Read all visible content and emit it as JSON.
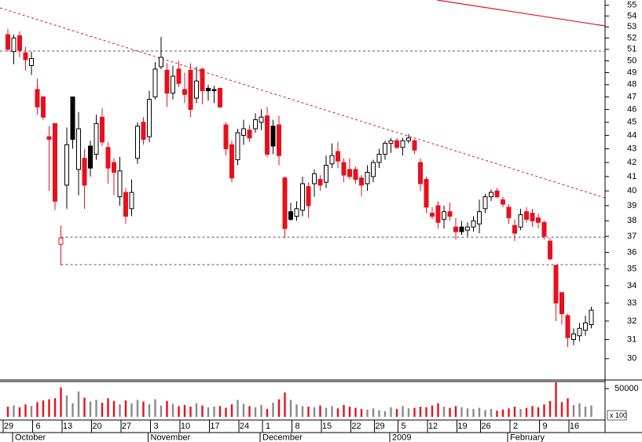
{
  "chart_data": {
    "type": "candlestick",
    "categories": [
      "29",
      null,
      null,
      null,
      null,
      "6",
      null,
      null,
      null,
      null,
      "13",
      null,
      null,
      null,
      null,
      "20",
      null,
      null,
      null,
      null,
      "27",
      null,
      null,
      null,
      null,
      "3",
      null,
      null,
      null,
      null,
      "10",
      null,
      null,
      null,
      null,
      "17",
      null,
      null,
      null,
      null,
      "24",
      null,
      null,
      null,
      "1",
      null,
      null,
      null,
      null,
      "8",
      null,
      null,
      null,
      null,
      "15",
      null,
      null,
      null,
      null,
      "22",
      null,
      null,
      null,
      "29",
      null,
      null,
      null,
      "5",
      null,
      null,
      null,
      null,
      "12",
      null,
      null,
      null,
      null,
      "19",
      null,
      null,
      null,
      "26",
      null,
      null,
      null,
      null,
      "2",
      null,
      null,
      null,
      null,
      "9",
      null,
      null,
      null,
      null,
      "16",
      null,
      null,
      null
    ],
    "months": [
      null,
      null,
      "October",
      null,
      null,
      null,
      null,
      null,
      null,
      null,
      null,
      null,
      null,
      null,
      null,
      null,
      null,
      null,
      null,
      null,
      null,
      null,
      null,
      null,
      null,
      "November",
      null,
      null,
      null,
      null,
      null,
      null,
      null,
      null,
      null,
      null,
      null,
      null,
      null,
      null,
      null,
      null,
      null,
      null,
      "December",
      null,
      null,
      null,
      null,
      null,
      null,
      null,
      null,
      null,
      null,
      null,
      null,
      null,
      null,
      null,
      null,
      null,
      null,
      null,
      null,
      null,
      "2009",
      null,
      null,
      null,
      null,
      null,
      null,
      null,
      null,
      null,
      null,
      null,
      null,
      null,
      null,
      null,
      null,
      null,
      null,
      null,
      "February",
      null,
      null,
      null,
      null,
      null,
      null,
      null,
      null,
      null,
      null,
      null,
      null,
      null
    ],
    "open": [
      52.3,
      50.8,
      52.2,
      50.7,
      49.6,
      47.6,
      47.0,
      43.9,
      44.9,
      36.5,
      40.4,
      47.0,
      41.5,
      42.3,
      43.2,
      42.6,
      45.4,
      43.1,
      42.0,
      39.6,
      39.9,
      38.8,
      42.3,
      45.0,
      43.9,
      47.0,
      49.5,
      49.2,
      47.3,
      49.3,
      47.6,
      49.2,
      46.9,
      49.3,
      47.7,
      47.6,
      47.7,
      44.8,
      43.3,
      42.2,
      44.0,
      44.4,
      44.5,
      45.0,
      45.5,
      44.7,
      44.8,
      40.9,
      38.6,
      38.3,
      38.7,
      40.3,
      40.5,
      40.8,
      40.6,
      41.9,
      42.8,
      42.0,
      41.5,
      41.5,
      40.9,
      40.5,
      41.0,
      42.0,
      42.6,
      43.4,
      43.6,
      43.1,
      43.6,
      43.6,
      42.0,
      40.8,
      38.5,
      39.0,
      38.1,
      38.6,
      37.6,
      37.6,
      37.4,
      37.6,
      37.8,
      38.8,
      39.6,
      40.0,
      39.4,
      38.9,
      37.7,
      37.6,
      38.6,
      38.5,
      38.2,
      37.9,
      36.7,
      35.2,
      33.6,
      32.3,
      31.0,
      31.2,
      31.5,
      31.8
    ],
    "high": [
      52.8,
      52.3,
      52.6,
      51.2,
      50.8,
      48.5,
      47.1,
      44.7,
      44.9,
      37.7,
      44.6,
      47.0,
      45.8,
      43.0,
      43.6,
      45.6,
      46.1,
      43.5,
      42.3,
      42.4,
      40.2,
      40.8,
      45.0,
      45.4,
      47.5,
      49.9,
      52.1,
      49.8,
      49.6,
      50.0,
      49.0,
      49.8,
      49.5,
      49.4,
      48.0,
      47.9,
      47.7,
      45.0,
      43.6,
      44.5,
      45.2,
      44.8,
      45.7,
      46.0,
      46.2,
      45.2,
      45.5,
      41.0,
      39.2,
      39.3,
      41.0,
      40.6,
      41.5,
      41.1,
      42.5,
      43.4,
      43.5,
      42.3,
      42.3,
      41.7,
      41.1,
      41.8,
      42.2,
      43.0,
      43.6,
      43.8,
      43.8,
      43.8,
      44.1,
      43.7,
      42.3,
      41.0,
      38.9,
      39.3,
      39.0,
      39.2,
      38.2,
      38.0,
      37.9,
      38.3,
      39.4,
      39.8,
      40.1,
      40.2,
      39.6,
      39.1,
      38.1,
      38.8,
      38.9,
      38.8,
      38.5,
      38.0,
      36.9,
      35.2,
      33.6,
      32.4,
      31.6,
      31.9,
      32.3,
      32.8
    ],
    "low": [
      50.8,
      49.7,
      50.3,
      49.2,
      48.8,
      45.6,
      45.2,
      40.0,
      38.7,
      35.2,
      38.8,
      43.0,
      39.7,
      38.8,
      41.0,
      42.2,
      43.2,
      40.5,
      39.7,
      39.0,
      37.8,
      38.3,
      41.9,
      43.3,
      43.5,
      46.8,
      49.3,
      46.2,
      46.8,
      47.8,
      46.5,
      45.4,
      46.5,
      46.4,
      46.7,
      46.5,
      46.1,
      42.5,
      40.6,
      41.8,
      43.3,
      43.5,
      44.2,
      44.4,
      42.4,
      42.6,
      41.8,
      36.9,
      38.0,
      38.0,
      38.3,
      38.2,
      39.6,
      40.0,
      40.2,
      41.6,
      41.6,
      40.6,
      40.8,
      40.5,
      39.6,
      40.0,
      40.6,
      41.6,
      42.2,
      42.7,
      43.0,
      42.5,
      43.4,
      42.6,
      40.0,
      38.5,
      38.1,
      37.5,
      37.5,
      38.0,
      36.8,
      37.1,
      37.0,
      37.3,
      37.2,
      38.5,
      39.3,
      39.5,
      38.9,
      37.8,
      36.7,
      37.4,
      37.9,
      37.6,
      37.5,
      36.8,
      35.5,
      32.0,
      31.8,
      30.6,
      30.7,
      30.9,
      31.2,
      31.6
    ],
    "close": [
      51.0,
      52.0,
      50.9,
      50.1,
      50.2,
      46.2,
      45.4,
      43.7,
      39.3,
      36.9,
      43.3,
      43.7,
      44.5,
      40.4,
      41.6,
      44.9,
      43.5,
      41.6,
      41.3,
      41.4,
      38.3,
      39.9,
      44.7,
      43.7,
      46.8,
      49.3,
      50.3,
      47.3,
      48.7,
      48.1,
      47.2,
      46.0,
      48.3,
      47.5,
      47.5,
      47.5,
      46.2,
      43.0,
      40.9,
      44.2,
      44.5,
      43.8,
      45.2,
      45.4,
      42.6,
      43.2,
      42.5,
      37.5,
      38.1,
      38.8,
      40.5,
      39.0,
      41.2,
      40.4,
      41.8,
      42.5,
      42.1,
      41.1,
      41.0,
      40.8,
      40.4,
      41.3,
      42.0,
      42.6,
      43.4,
      43.6,
      43.1,
      43.6,
      43.8,
      42.9,
      40.5,
      38.9,
      38.3,
      37.9,
      38.6,
      38.3,
      37.3,
      37.3,
      37.6,
      38.0,
      38.6,
      39.6,
      39.9,
      39.6,
      39.1,
      38.2,
      37.2,
      38.4,
      38.1,
      38.0,
      37.9,
      37.0,
      35.6,
      33.0,
      32.4,
      31.1,
      31.3,
      31.6,
      31.9,
      32.6
    ],
    "volume": [
      18000,
      20000,
      17000,
      22000,
      19000,
      26000,
      29000,
      31000,
      33000,
      52000,
      38000,
      24000,
      45000,
      34000,
      27000,
      30000,
      25000,
      33000,
      28000,
      22000,
      29000,
      24000,
      30000,
      27000,
      22000,
      31000,
      20000,
      28000,
      23000,
      19000,
      21000,
      18000,
      24000,
      20000,
      17000,
      18000,
      19000,
      16000,
      22000,
      30000,
      23000,
      19000,
      17000,
      21000,
      14000,
      25000,
      31000,
      43000,
      30000,
      22000,
      19000,
      18000,
      17000,
      20000,
      16000,
      19000,
      15000,
      21000,
      18000,
      16000,
      14000,
      13000,
      15000,
      12000,
      10000,
      17000,
      14000,
      19000,
      15000,
      16000,
      18000,
      17000,
      20000,
      24000,
      18000,
      16000,
      19000,
      17000,
      15000,
      14000,
      16000,
      12000,
      14000,
      11000,
      13000,
      15000,
      18000,
      14000,
      16000,
      19000,
      17000,
      22000,
      28000,
      61000,
      26000,
      33000,
      21000,
      24000,
      18000,
      20000
    ],
    "ylim": [
      29,
      55.5
    ],
    "yticks": [
      30,
      31,
      32,
      33,
      34,
      35,
      36,
      37,
      38,
      39,
      40,
      41,
      42,
      43,
      44,
      45,
      46,
      47,
      48,
      49,
      50,
      51,
      52,
      53,
      54,
      55
    ],
    "ylog": true,
    "volume_lim": [
      0,
      61000
    ],
    "volume_ticks": [
      50000
    ],
    "volume_unit": "x 100",
    "levels": [
      50.85,
      36.95,
      35.25
    ],
    "down_color": "#e8101e",
    "up_color": "#000000",
    "volume_color": "#8a8a8a"
  }
}
